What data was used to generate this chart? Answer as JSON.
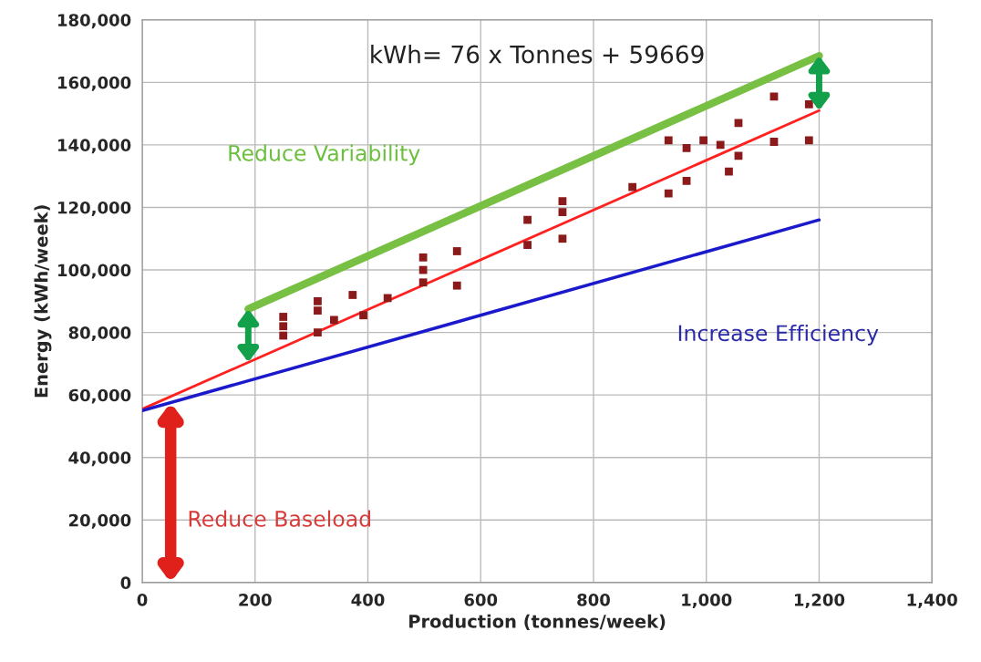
{
  "chart_data": {
    "type": "scatter",
    "xlabel": "Production (tonnes/week)",
    "ylabel": "Energy (kWh/week)",
    "series": [
      {
        "type": "scatter",
        "color": "#8b1a1a",
        "marker": "square",
        "x": [
          250,
          250,
          250,
          311,
          311,
          311,
          340,
          373,
          392,
          435,
          498,
          498,
          498,
          558,
          558,
          683,
          683,
          745,
          745,
          745,
          869,
          933,
          933,
          965,
          965,
          995,
          1025,
          1040,
          1057,
          1057,
          1120,
          1120,
          1182,
          1182
        ],
        "values": [
          85000,
          82000,
          79000,
          90000,
          87000,
          80000,
          84000,
          92000,
          85500,
          91000,
          104000,
          100000,
          96000,
          106000,
          95000,
          116000,
          108000,
          122000,
          118500,
          110000,
          126500,
          141500,
          124500,
          139000,
          128500,
          141500,
          140000,
          131500,
          147000,
          136500,
          155500,
          141000,
          153000,
          141500
        ]
      },
      {
        "type": "line",
        "color": "#ff2020",
        "marker": "none",
        "x": [
          0,
          1200
        ],
        "values": [
          55500,
          151000
        ]
      },
      {
        "type": "line",
        "color": "#1a1acc",
        "marker": "none",
        "x": [
          0,
          1200
        ],
        "values": [
          55000,
          116000
        ]
      },
      {
        "type": "line",
        "color": "#77c043",
        "marker": "none",
        "x": [
          188,
          1200
        ],
        "values": [
          87500,
          168500
        ]
      }
    ],
    "annotations": [
      "kWh= 76 x Tonnes + 59669",
      "Reduce Variability",
      "Increase Efficiency",
      "Reduce Baseload"
    ],
    "xlim": [
      0,
      1400
    ],
    "xticks": [
      0,
      200,
      400,
      600,
      800,
      {
        "value": 1000,
        "label": "1,000"
      },
      {
        "value": 1200,
        "label": "1,200"
      },
      {
        "value": 1400,
        "label": "1,400"
      }
    ],
    "ylim": [
      0,
      180000
    ],
    "yticks": [
      0,
      {
        "value": 20000,
        "label": "20,000"
      },
      {
        "value": 40000,
        "label": "40,000"
      },
      {
        "value": 60000,
        "label": "60,000"
      },
      {
        "value": 80000,
        "label": "80,000"
      },
      {
        "value": 100000,
        "label": "100,000"
      },
      {
        "value": 120000,
        "label": "120,000"
      },
      {
        "value": 140000,
        "label": "140,000"
      },
      {
        "value": 160000,
        "label": "160,000"
      },
      {
        "value": 180000,
        "label": "180,000"
      }
    ],
    "grid": true,
    "legend": false
  }
}
